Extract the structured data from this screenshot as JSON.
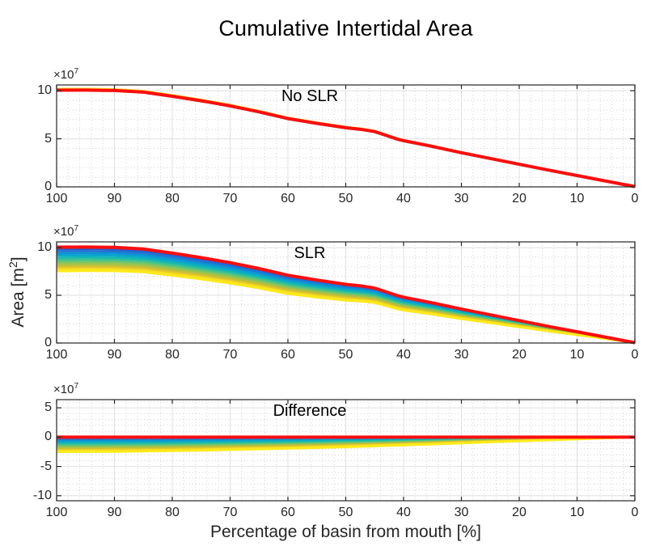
{
  "title": "Cumulative Intertidal Area",
  "xlabel": "Percentage of basin from mouth [%]",
  "ylabel": {
    "pre": "Area [m",
    "sup": "2",
    "post": "]"
  },
  "offset": {
    "base": "×10",
    "exp": "7"
  },
  "chart_data": {
    "type": "line",
    "title": "Cumulative Intertidal Area",
    "x_axis": {
      "label": "Percentage of basin from mouth [%]",
      "ticks": [
        100,
        90,
        80,
        70,
        60,
        50,
        40,
        30,
        20,
        10,
        0
      ],
      "direction": "reversed",
      "minor_tick_step": 2
    },
    "y_axis": {
      "label": "Area [m^2]",
      "scale_factor_text": "×10^7",
      "minor_tick_step": 1
    },
    "x": [
      100,
      95,
      90,
      85,
      80,
      75,
      70,
      65,
      60,
      55,
      50,
      47,
      45,
      43,
      41,
      40,
      35,
      30,
      25,
      20,
      15,
      10,
      5,
      0
    ],
    "no_slr": [
      10.05,
      10.06,
      10.02,
      9.85,
      9.42,
      8.95,
      8.42,
      7.8,
      7.1,
      6.6,
      6.15,
      5.95,
      5.75,
      5.35,
      4.95,
      4.8,
      4.2,
      3.55,
      2.95,
      2.35,
      1.75,
      1.18,
      0.6,
      0.03
    ],
    "slr_minus_no_slr": [
      -2.52,
      -2.5,
      -2.47,
      -2.42,
      -2.35,
      -2.26,
      -2.16,
      -2.05,
      -1.94,
      -1.82,
      -1.68,
      -1.6,
      -1.54,
      -1.47,
      -1.4,
      -1.37,
      -1.2,
      -1.02,
      -0.85,
      -0.68,
      -0.51,
      -0.34,
      -0.17,
      -0.01
    ],
    "scenario_fractions": [
      0.08,
      0.17,
      0.26,
      0.35,
      0.44,
      0.53,
      0.62,
      0.7,
      0.78,
      0.86,
      0.93,
      1.0
    ],
    "scenario_colors": [
      "#2e59c9",
      "#2173d2",
      "#1090d6",
      "#0ba7cb",
      "#14b8b2",
      "#3fc291",
      "#6ec56e",
      "#9ac450",
      "#c1bf3a",
      "#e2c62c",
      "#f6df20",
      "#fdea19"
    ],
    "baseline_color": "#fb0e0e",
    "no_slr_edge_color": "#f5d922",
    "values_unit": "1e7 m^2",
    "panels": [
      {
        "id": "no-slr",
        "label": "No SLR",
        "ylim": [
          0,
          10.6
        ],
        "yticks": [
          10,
          5,
          0
        ]
      },
      {
        "id": "slr",
        "label": "SLR",
        "ylim": [
          0,
          10.6
        ],
        "yticks": [
          10,
          5,
          0
        ]
      },
      {
        "id": "difference",
        "label": "Difference",
        "ylim": [
          -10.85,
          6.4
        ],
        "yticks": [
          5,
          0,
          -5,
          -10
        ]
      }
    ]
  }
}
